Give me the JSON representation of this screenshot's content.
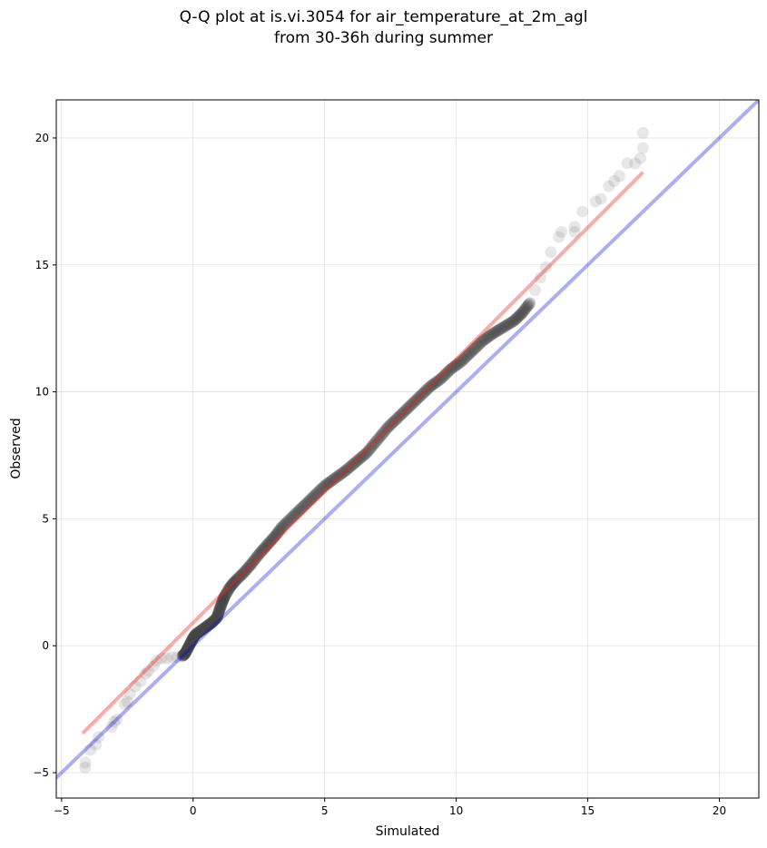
{
  "chart_data": {
    "type": "scatter",
    "title": [
      "Q-Q plot at is.vi.3054 for air_temperature_at_2m_agl",
      "from 30-36h during summer"
    ],
    "xlabel": "Simulated",
    "ylabel": "Observed",
    "xlim": [
      -5.2,
      21.5
    ],
    "ylim": [
      -6.0,
      21.5
    ],
    "xticks": [
      -5,
      0,
      5,
      10,
      15,
      20
    ],
    "yticks": [
      -5,
      0,
      5,
      10,
      15,
      20
    ],
    "grid": true,
    "reference_line": {
      "slope": 1,
      "intercept": 0,
      "color": "#0000dd"
    },
    "fit_line": {
      "x": [
        -4.2,
        17.1
      ],
      "y": [
        -3.45,
        18.65
      ],
      "color": "#ee2222"
    },
    "point_color": "#444444",
    "points": {
      "tail_low": [
        [
          -4.1,
          -4.8
        ],
        [
          -4.1,
          -4.6
        ],
        [
          -3.9,
          -4.1
        ],
        [
          -3.7,
          -3.9
        ],
        [
          -3.6,
          -3.6
        ],
        [
          -3.1,
          -3.2
        ],
        [
          -3.0,
          -3.0
        ],
        [
          -2.9,
          -2.9
        ],
        [
          -2.6,
          -2.3
        ],
        [
          -2.5,
          -2.2
        ],
        [
          -2.4,
          -1.9
        ],
        [
          -2.2,
          -1.6
        ],
        [
          -2.0,
          -1.4
        ],
        [
          -1.8,
          -1.1
        ],
        [
          -1.7,
          -1.0
        ],
        [
          -1.5,
          -0.8
        ],
        [
          -1.4,
          -0.6
        ],
        [
          -1.2,
          -0.5
        ],
        [
          -1.0,
          -0.5
        ],
        [
          -0.8,
          -0.45
        ],
        [
          -0.6,
          -0.45
        ]
      ],
      "body": [
        [
          -0.4,
          -0.4
        ],
        [
          -0.3,
          -0.3
        ],
        [
          -0.2,
          -0.1
        ],
        [
          -0.1,
          0.1
        ],
        [
          0.0,
          0.3
        ],
        [
          0.1,
          0.45
        ],
        [
          0.3,
          0.6
        ],
        [
          0.5,
          0.75
        ],
        [
          0.7,
          0.9
        ],
        [
          0.9,
          1.1
        ],
        [
          1.0,
          1.4
        ],
        [
          1.1,
          1.7
        ],
        [
          1.2,
          1.95
        ],
        [
          1.4,
          2.3
        ],
        [
          1.6,
          2.55
        ],
        [
          1.9,
          2.85
        ],
        [
          2.2,
          3.2
        ],
        [
          2.5,
          3.6
        ],
        [
          2.8,
          3.95
        ],
        [
          3.1,
          4.3
        ],
        [
          3.4,
          4.7
        ],
        [
          3.8,
          5.1
        ],
        [
          4.2,
          5.5
        ],
        [
          4.6,
          5.9
        ],
        [
          5.0,
          6.3
        ],
        [
          5.4,
          6.6
        ],
        [
          5.8,
          6.9
        ],
        [
          6.2,
          7.25
        ],
        [
          6.6,
          7.6
        ],
        [
          7.0,
          8.1
        ],
        [
          7.4,
          8.6
        ],
        [
          7.8,
          9.0
        ],
        [
          8.2,
          9.4
        ],
        [
          8.6,
          9.8
        ],
        [
          9.0,
          10.2
        ],
        [
          9.4,
          10.5
        ],
        [
          9.8,
          10.9
        ],
        [
          10.2,
          11.2
        ],
        [
          10.6,
          11.6
        ],
        [
          11.0,
          12.0
        ],
        [
          11.4,
          12.3
        ],
        [
          11.8,
          12.55
        ],
        [
          12.2,
          12.8
        ],
        [
          12.5,
          13.1
        ],
        [
          12.8,
          13.5
        ]
      ],
      "tail_high": [
        [
          13.0,
          14.0
        ],
        [
          13.2,
          14.5
        ],
        [
          13.4,
          14.9
        ],
        [
          13.6,
          15.5
        ],
        [
          13.9,
          16.1
        ],
        [
          14.0,
          16.3
        ],
        [
          14.5,
          16.3
        ],
        [
          14.5,
          16.5
        ],
        [
          14.8,
          17.1
        ],
        [
          15.3,
          17.5
        ],
        [
          15.5,
          17.6
        ],
        [
          15.8,
          18.1
        ],
        [
          16.0,
          18.3
        ],
        [
          16.2,
          18.5
        ],
        [
          16.5,
          19.0
        ],
        [
          16.8,
          19.0
        ],
        [
          17.0,
          19.2
        ],
        [
          17.1,
          19.6
        ],
        [
          17.1,
          20.2
        ]
      ]
    }
  }
}
